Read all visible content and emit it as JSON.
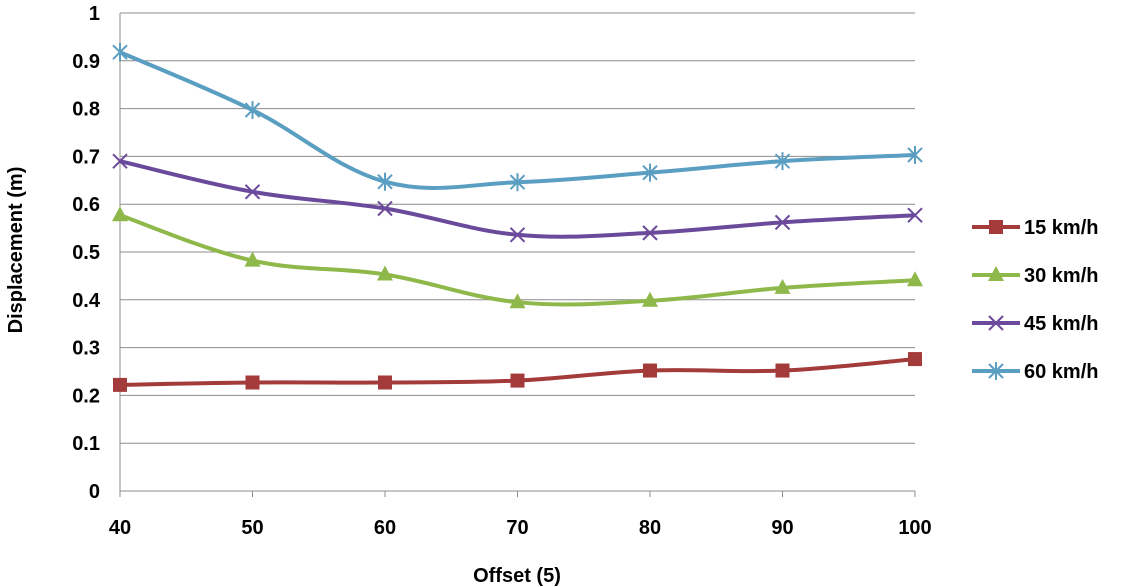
{
  "chart_data": {
    "type": "line",
    "title": "",
    "xlabel": "Offset (5)",
    "ylabel": "Displacement (m)",
    "x": [
      40,
      50,
      60,
      70,
      80,
      90,
      100
    ],
    "xlim": [
      40,
      100
    ],
    "ylim": [
      0,
      1
    ],
    "yticks": [
      0,
      0.1,
      0.2,
      0.3,
      0.4,
      0.5,
      0.6,
      0.7,
      0.8,
      0.9,
      1
    ],
    "grid": true,
    "legend": "right",
    "series": [
      {
        "name": "15 km/h",
        "color": "#a33b3b",
        "marker": "square-icon",
        "values": [
          0.222,
          0.227,
          0.227,
          0.231,
          0.252,
          0.252,
          0.276
        ]
      },
      {
        "name": "30 km/h",
        "color": "#8fb84a",
        "marker": "triangle-icon",
        "values": [
          0.577,
          0.482,
          0.453,
          0.395,
          0.398,
          0.425,
          0.441
        ]
      },
      {
        "name": "45 km/h",
        "color": "#6b4a9c",
        "marker": "x-icon",
        "values": [
          0.69,
          0.626,
          0.591,
          0.536,
          0.54,
          0.562,
          0.577
        ]
      },
      {
        "name": "60 km/h",
        "color": "#5a9ec2",
        "marker": "star-icon",
        "values": [
          0.918,
          0.797,
          0.647,
          0.646,
          0.666,
          0.69,
          0.703
        ]
      }
    ]
  }
}
